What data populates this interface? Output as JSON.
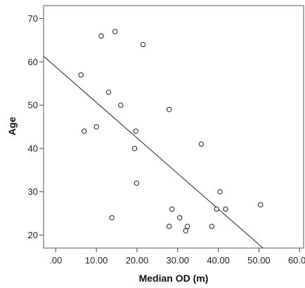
{
  "chart_data": {
    "type": "scatter",
    "title": "",
    "xlabel": "Median OD (m)",
    "ylabel": "Age",
    "xlim": [
      -3,
      61
    ],
    "ylim": [
      17,
      73
    ],
    "x_ticks": [
      {
        "value": 0,
        "label": ".00"
      },
      {
        "value": 10,
        "label": "10.00"
      },
      {
        "value": 20,
        "label": "20.00"
      },
      {
        "value": 30,
        "label": "30.00"
      },
      {
        "value": 40,
        "label": "40.00"
      },
      {
        "value": 50,
        "label": "50.00"
      },
      {
        "value": 60,
        "label": "60.00"
      }
    ],
    "y_ticks": [
      {
        "value": 20,
        "label": "20"
      },
      {
        "value": 30,
        "label": "30"
      },
      {
        "value": 40,
        "label": "40"
      },
      {
        "value": 50,
        "label": "50"
      },
      {
        "value": 60,
        "label": "60"
      },
      {
        "value": 70,
        "label": "70"
      }
    ],
    "grid": false,
    "legend": "none",
    "series": [
      {
        "points": [
          {
            "x": 6.2,
            "y": 57
          },
          {
            "x": 7.0,
            "y": 44
          },
          {
            "x": 10.0,
            "y": 45
          },
          {
            "x": 11.2,
            "y": 66
          },
          {
            "x": 13.0,
            "y": 53
          },
          {
            "x": 13.8,
            "y": 24
          },
          {
            "x": 14.6,
            "y": 67
          },
          {
            "x": 16.0,
            "y": 50
          },
          {
            "x": 19.4,
            "y": 40
          },
          {
            "x": 19.7,
            "y": 44
          },
          {
            "x": 19.9,
            "y": 32
          },
          {
            "x": 21.5,
            "y": 64
          },
          {
            "x": 27.9,
            "y": 49
          },
          {
            "x": 27.9,
            "y": 22
          },
          {
            "x": 28.6,
            "y": 26
          },
          {
            "x": 30.5,
            "y": 24
          },
          {
            "x": 32.0,
            "y": 21
          },
          {
            "x": 32.4,
            "y": 22
          },
          {
            "x": 35.8,
            "y": 41
          },
          {
            "x": 38.4,
            "y": 22
          },
          {
            "x": 39.6,
            "y": 26
          },
          {
            "x": 40.4,
            "y": 30
          },
          {
            "x": 41.8,
            "y": 26
          },
          {
            "x": 50.4,
            "y": 27
          }
        ]
      }
    ],
    "fit_line": {
      "x1": -3,
      "y1": 61.3,
      "x2": 51.0,
      "y2": 17
    }
  }
}
